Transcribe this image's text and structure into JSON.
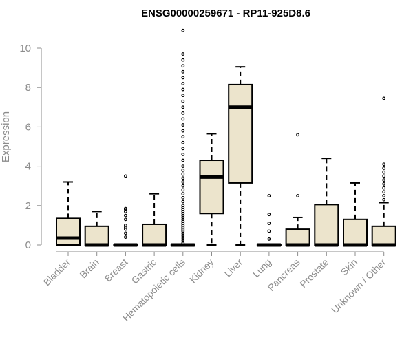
{
  "chart_data": {
    "type": "boxplot",
    "title": "ENSG00000259671 - RP11-925D8.6",
    "xlabel": "",
    "ylabel": "Expression",
    "ylim": [
      0,
      10
    ],
    "yticks": [
      0,
      2,
      4,
      6,
      8,
      10
    ],
    "box_color": "#ece4cc",
    "categories": [
      "Bladder",
      "Brain",
      "Breast",
      "Gastric",
      "Hematopoietic cells",
      "Kidney",
      "Liver",
      "Lung",
      "Pancreas",
      "Prostate",
      "Skin",
      "Unknown / Other"
    ],
    "boxes": [
      {
        "q1": 0.0,
        "median": 0.35,
        "q3": 1.35,
        "whisker_low": 0.0,
        "whisker_high": 3.2,
        "outliers": []
      },
      {
        "q1": 0.0,
        "median": 0.0,
        "q3": 0.95,
        "whisker_low": 0.0,
        "whisker_high": 1.7,
        "outliers": []
      },
      {
        "q1": 0.0,
        "median": 0.0,
        "q3": 0.0,
        "whisker_low": 0.0,
        "whisker_high": 0.0,
        "outliers": [
          0.4,
          0.6,
          0.8,
          0.9,
          1.0,
          1.3,
          1.5,
          1.7,
          1.8,
          1.85,
          3.5
        ]
      },
      {
        "q1": 0.0,
        "median": 0.0,
        "q3": 1.05,
        "whisker_low": 0.0,
        "whisker_high": 2.6,
        "outliers": []
      },
      {
        "q1": 0.0,
        "median": 0.0,
        "q3": 0.0,
        "whisker_low": 0.0,
        "whisker_high": 0.0,
        "outliers": [
          0.1,
          0.2,
          0.3,
          0.4,
          0.5,
          0.6,
          0.7,
          0.8,
          0.9,
          1.0,
          1.1,
          1.2,
          1.3,
          1.4,
          1.5,
          1.6,
          1.7,
          1.8,
          1.9,
          2.0,
          2.2,
          2.4,
          2.6,
          2.8,
          3.0,
          3.2,
          3.4,
          3.6,
          3.8,
          4.0,
          4.3,
          4.6,
          4.9,
          5.2,
          5.5,
          5.8,
          6.1,
          6.4,
          6.7,
          7.0,
          7.3,
          7.6,
          7.9,
          8.2,
          8.5,
          8.8,
          9.1,
          9.4,
          9.7,
          10.9
        ]
      },
      {
        "q1": 1.6,
        "median": 3.45,
        "q3": 4.3,
        "whisker_low": 0.0,
        "whisker_high": 5.65,
        "outliers": []
      },
      {
        "q1": 3.15,
        "median": 7.0,
        "q3": 8.15,
        "whisker_low": 0.0,
        "whisker_high": 9.05,
        "outliers": []
      },
      {
        "q1": 0.0,
        "median": 0.0,
        "q3": 0.0,
        "whisker_low": 0.0,
        "whisker_high": 0.0,
        "outliers": [
          0.3,
          0.7,
          1.1,
          1.55,
          2.5
        ]
      },
      {
        "q1": 0.0,
        "median": 0.0,
        "q3": 0.8,
        "whisker_low": 0.0,
        "whisker_high": 1.4,
        "outliers": [
          2.5,
          5.6
        ]
      },
      {
        "q1": 0.0,
        "median": 0.0,
        "q3": 2.05,
        "whisker_low": 0.0,
        "whisker_high": 4.4,
        "outliers": []
      },
      {
        "q1": 0.0,
        "median": 0.0,
        "q3": 1.3,
        "whisker_low": 0.0,
        "whisker_high": 3.15,
        "outliers": []
      },
      {
        "q1": 0.0,
        "median": 0.0,
        "q3": 0.95,
        "whisker_low": 0.0,
        "whisker_high": 2.15,
        "outliers": [
          2.3,
          2.5,
          2.7,
          2.9,
          3.1,
          3.3,
          3.5,
          3.7,
          3.9,
          4.1,
          7.45
        ]
      }
    ]
  }
}
